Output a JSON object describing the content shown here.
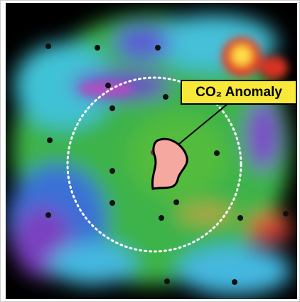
{
  "callout": {
    "label": "CO₂ Anomaly"
  }
}
